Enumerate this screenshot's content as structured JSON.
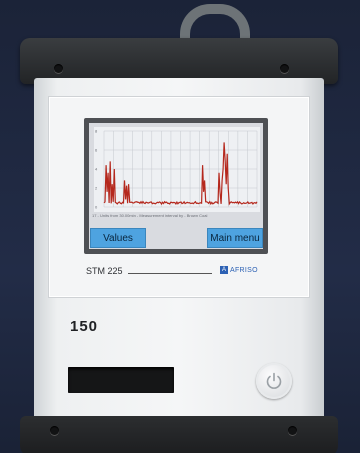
{
  "device": {
    "screen": {
      "caption": "17 - Units from 30.00min - Measurement interval by - Brown Coal",
      "buttons": {
        "left": "Values",
        "right": "Main menu"
      },
      "y_ticks": [
        "8",
        "6",
        "4",
        "2",
        "0"
      ]
    },
    "model": "STM 225",
    "brand": "AFRISO",
    "years_logo": "150",
    "colors": {
      "plot_line": "#b5281d",
      "softkey": "#4ea3e0",
      "bumper": "#2a2c2e"
    },
    "icons": [
      "power-icon",
      "brand-logo-icon"
    ]
  }
}
